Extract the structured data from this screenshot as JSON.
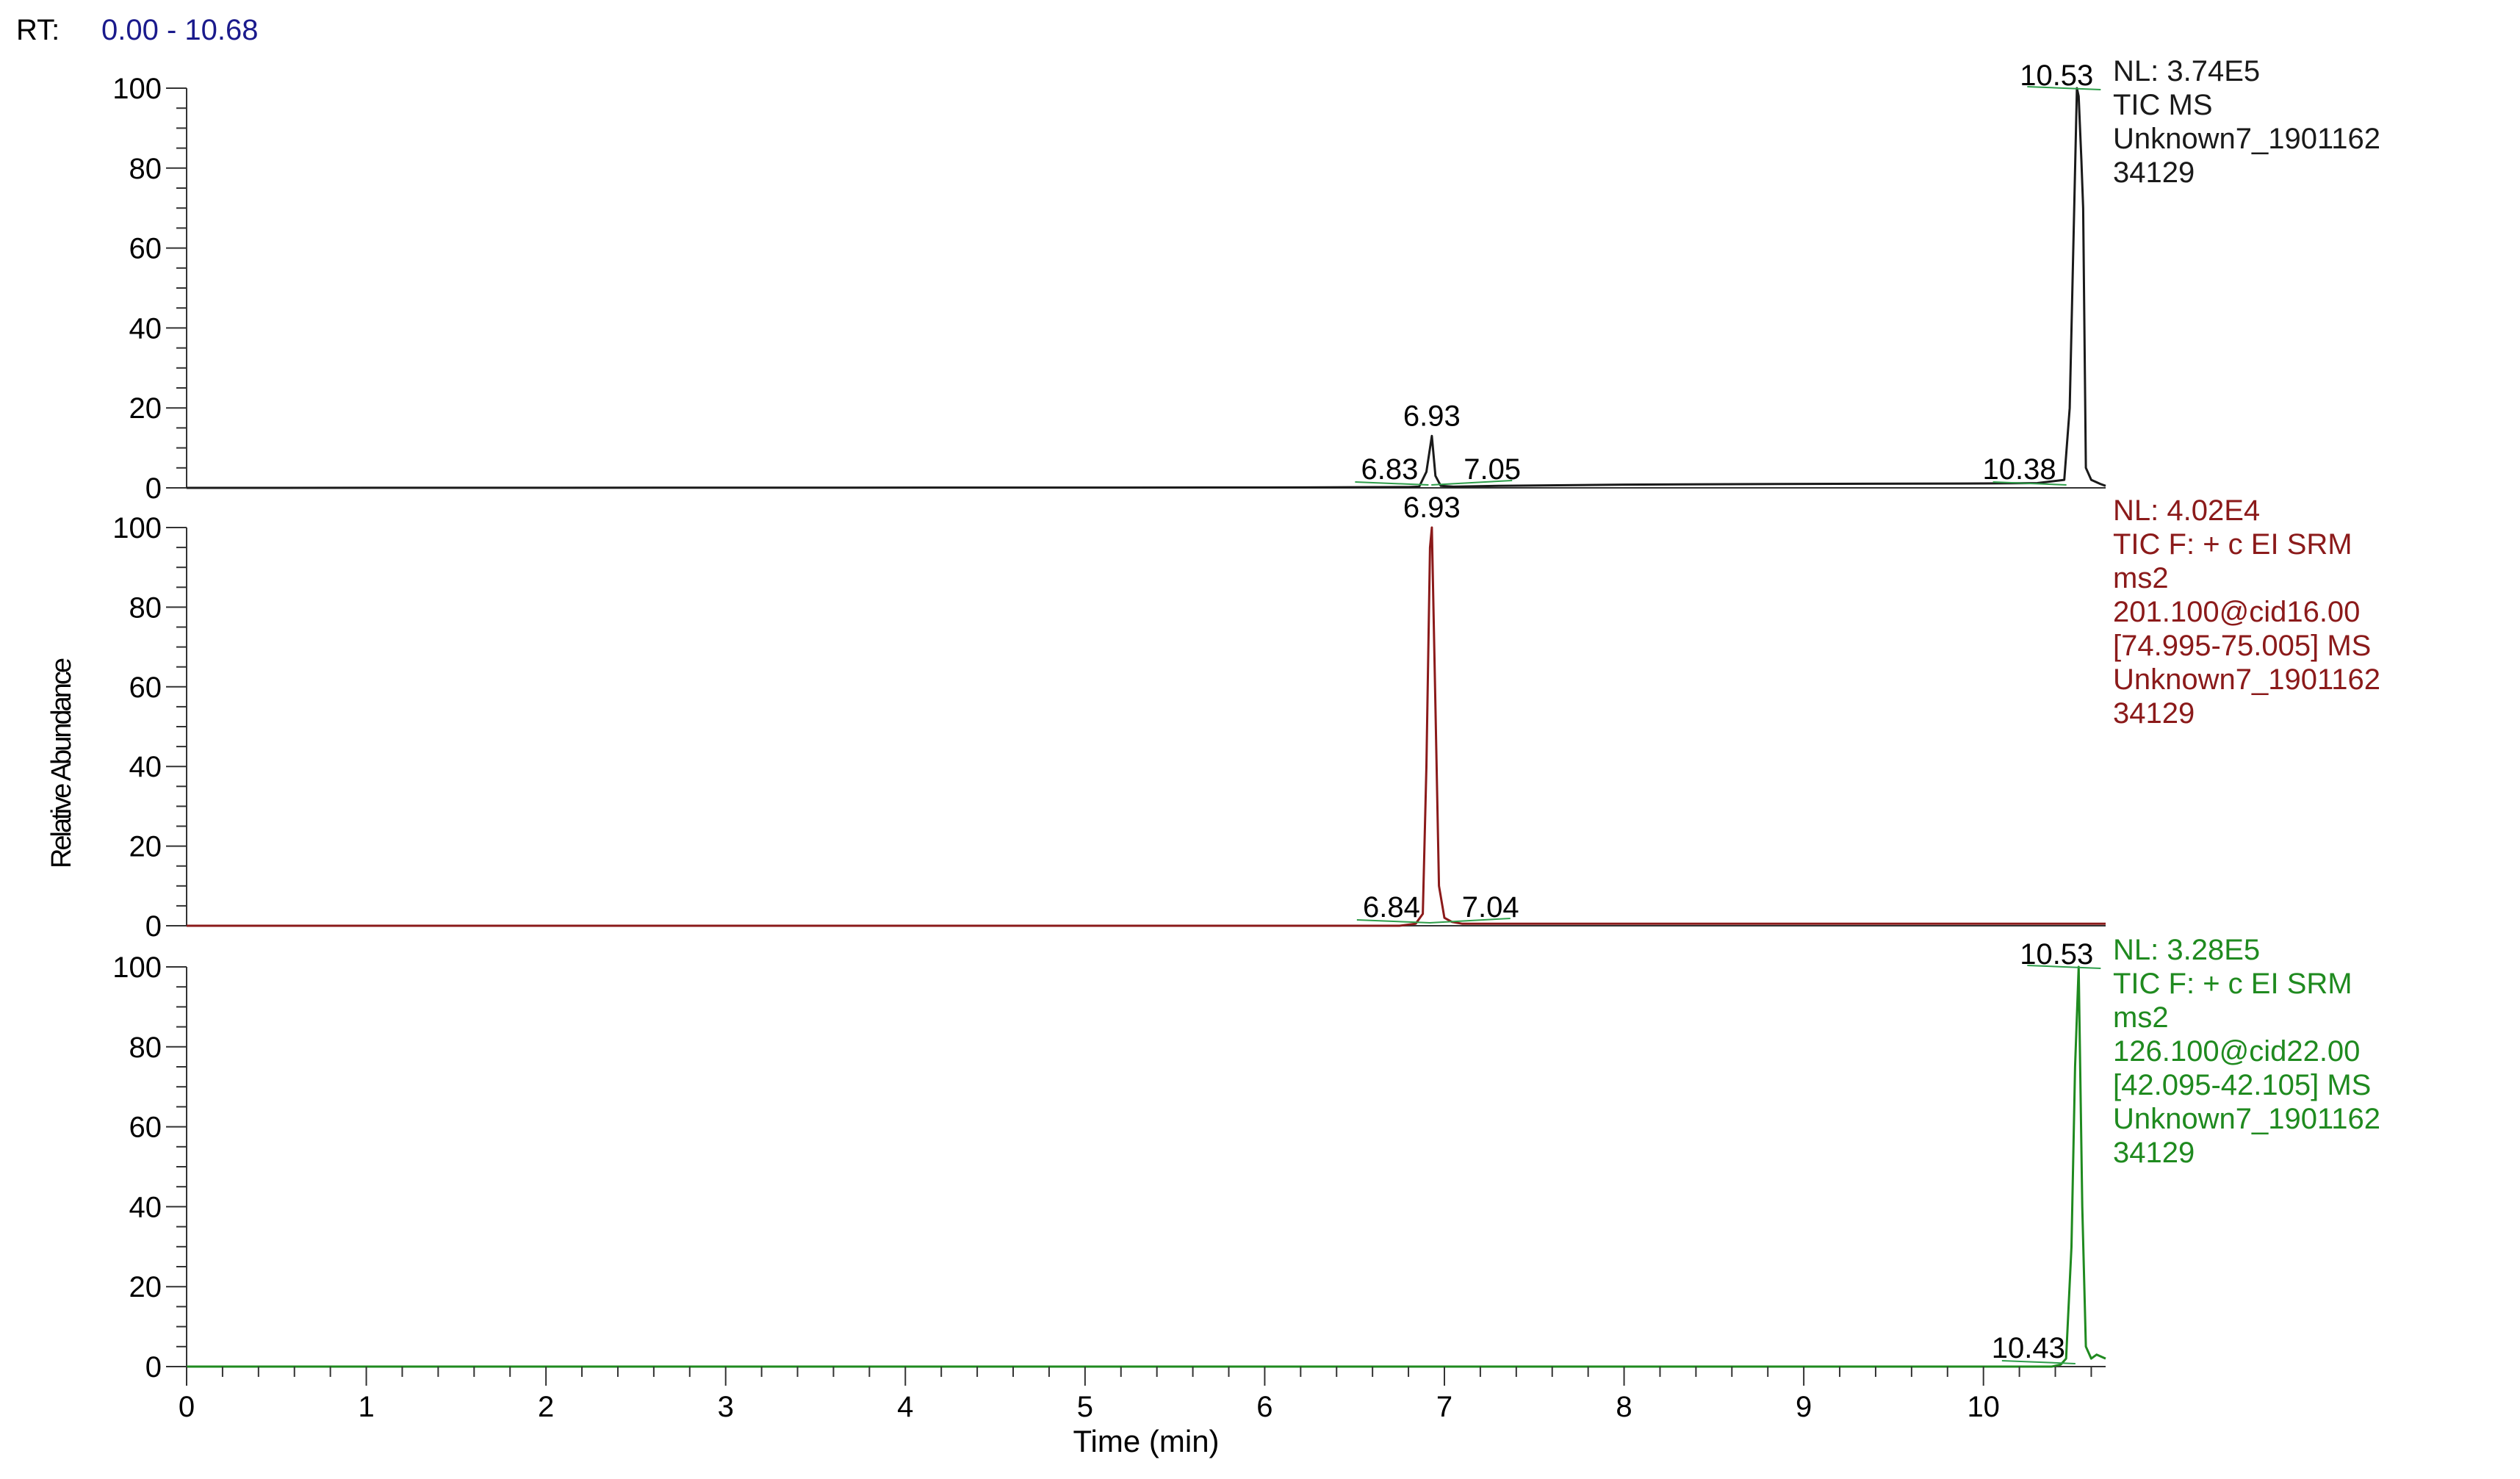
{
  "header": {
    "rt_label": "RT:",
    "rt_range": "0.00 - 10.68",
    "rt_color": "#1a1a8c"
  },
  "chart_data": {
    "type": "line",
    "xlabel": "Time (min)",
    "ylabel": "Relative Abundance",
    "xlim": [
      0,
      10.68
    ],
    "ylim": [
      0,
      100
    ],
    "x_ticks": [
      "0",
      "1",
      "2",
      "3",
      "4",
      "5",
      "6",
      "7",
      "8",
      "9",
      "10"
    ],
    "y_ticks": [
      "0",
      "20",
      "40",
      "60",
      "80",
      "100"
    ],
    "grid": false,
    "panels": [
      {
        "id": "tic-ms",
        "color": "#1a1a1a",
        "info": [
          "NL: 3.74E5",
          "TIC  MS",
          "Unknown7_1901162",
          "34129"
        ],
        "x": [
          0,
          6.0,
          6.8,
          6.86,
          6.9,
          6.93,
          6.95,
          6.98,
          7.05,
          7.3,
          8.0,
          9.0,
          10.0,
          10.3,
          10.45,
          10.48,
          10.5,
          10.52,
          10.53,
          10.545,
          10.555,
          10.57,
          10.6,
          10.65,
          10.68
        ],
        "y": [
          0,
          0.1,
          0.2,
          0.3,
          4,
          13,
          3,
          0.5,
          0.3,
          0.5,
          0.8,
          1.0,
          1.1,
          1.2,
          2,
          20,
          60,
          100,
          98,
          82,
          70,
          5,
          2,
          1,
          0.5
        ],
        "peak_labels": [
          {
            "text": "6.93",
            "x": 6.93,
            "y": 13,
            "pos": "top"
          },
          {
            "text": "6.83",
            "x": 6.83,
            "y": 0,
            "pos": "baseline-left"
          },
          {
            "text": "7.05",
            "x": 7.05,
            "y": 0,
            "pos": "baseline-right"
          },
          {
            "text": "10.38",
            "x": 10.38,
            "y": 0,
            "pos": "baseline-left"
          },
          {
            "text": "10.53",
            "x": 10.53,
            "y": 100,
            "pos": "top-left"
          }
        ]
      },
      {
        "id": "tic-srm-201",
        "color": "#8b1a1a",
        "info": [
          "NL: 4.02E4",
          "TIC F: + c EI SRM",
          "ms2",
          "201.100@cid16.00",
          "[74.995-75.005]  MS",
          "Unknown7_1901162",
          "34129"
        ],
        "x": [
          0,
          6.75,
          6.84,
          6.88,
          6.9,
          6.92,
          6.93,
          6.95,
          6.97,
          7.0,
          7.04,
          7.1,
          10.68
        ],
        "y": [
          0,
          0,
          0.5,
          3,
          40,
          95,
          100,
          55,
          10,
          2,
          1,
          0.5,
          0.5
        ],
        "peak_labels": [
          {
            "text": "6.93",
            "x": 6.93,
            "y": 100,
            "pos": "top"
          },
          {
            "text": "6.84",
            "x": 6.84,
            "y": 0,
            "pos": "baseline-left"
          },
          {
            "text": "7.04",
            "x": 7.04,
            "y": 0,
            "pos": "baseline-right"
          }
        ]
      },
      {
        "id": "tic-srm-126",
        "color": "#1f8a1f",
        "info": [
          "NL: 3.28E5",
          "TIC F: + c EI SRM",
          "ms2",
          "126.100@cid22.00",
          "[42.095-42.105]  MS",
          "Unknown7_1901162",
          "34129"
        ],
        "x": [
          0,
          10.38,
          10.43,
          10.46,
          10.49,
          10.51,
          10.53,
          10.55,
          10.57,
          10.6,
          10.63,
          10.68
        ],
        "y": [
          0,
          0,
          0.5,
          2,
          30,
          75,
          100,
          40,
          5,
          2,
          3,
          2
        ],
        "peak_labels": [
          {
            "text": "10.43",
            "x": 10.43,
            "y": 0,
            "pos": "baseline-left"
          },
          {
            "text": "10.53",
            "x": 10.53,
            "y": 100,
            "pos": "top-left"
          }
        ]
      }
    ]
  }
}
